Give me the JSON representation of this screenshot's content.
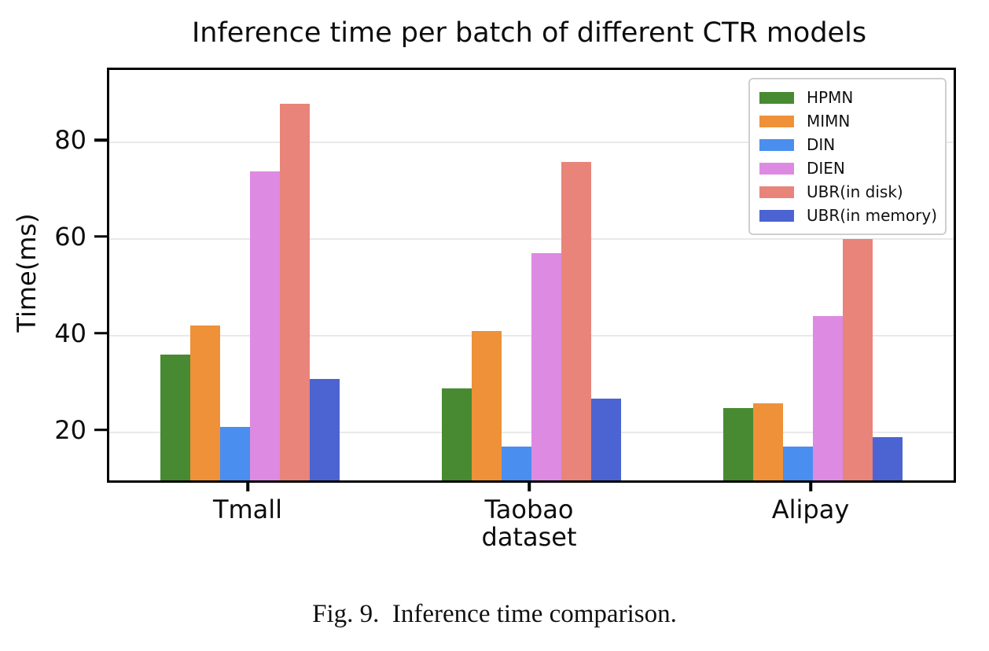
{
  "caption": "Fig. 9.  Inference time comparison.",
  "chart_data": {
    "type": "bar",
    "title": "Inference time per batch of different CTR models",
    "xlabel": "dataset",
    "ylabel": "Time(ms)",
    "categories": [
      "Tmall",
      "Taobao",
      "Alipay"
    ],
    "series": [
      {
        "name": "HPMN",
        "color": "#478a32",
        "values": [
          36,
          29,
          25
        ]
      },
      {
        "name": "MIMN",
        "color": "#ee9139",
        "values": [
          42,
          41,
          26
        ]
      },
      {
        "name": "DIN",
        "color": "#4a8eef",
        "values": [
          21,
          17,
          17
        ]
      },
      {
        "name": "DIEN",
        "color": "#dd8ae3",
        "values": [
          74,
          57,
          44
        ]
      },
      {
        "name": "UBR(in disk)",
        "color": "#e8847a",
        "values": [
          88,
          76,
          60
        ]
      },
      {
        "name": "UBR(in memory)",
        "color": "#4b64d2",
        "values": [
          31,
          27,
          19
        ]
      }
    ],
    "yticks": [
      20,
      40,
      60,
      80
    ],
    "ylim": [
      10,
      95
    ],
    "grid": true,
    "legend_position": "upper right",
    "axis_color": "#000000",
    "grid_color": "#e9e9e9"
  }
}
